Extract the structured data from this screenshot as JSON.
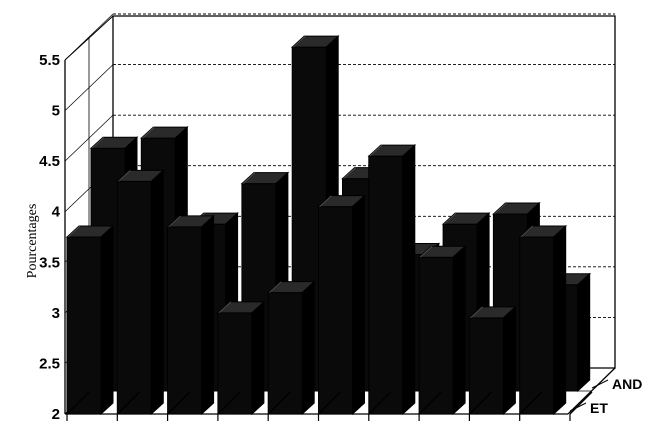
{
  "chart_data": {
    "type": "bar",
    "style": "3d-depth",
    "ylabel": "Pourcentages",
    "ylim": [
      2,
      5.5
    ],
    "y_ticks": [
      "2",
      "2.5",
      "3",
      "3.5",
      "4",
      "4.5",
      "5",
      "5.5"
    ],
    "grid": "horizontal dashed on back wall",
    "series": [
      {
        "name": "ET",
        "values": [
          3.75,
          4.3,
          3.85,
          3.0,
          3.2,
          4.05,
          4.55,
          3.55,
          2.95,
          3.75
        ]
      },
      {
        "name": "AND",
        "values": [
          4.4,
          4.5,
          3.65,
          4.05,
          5.4,
          4.1,
          3.35,
          3.65,
          3.75,
          3.05
        ]
      }
    ]
  }
}
